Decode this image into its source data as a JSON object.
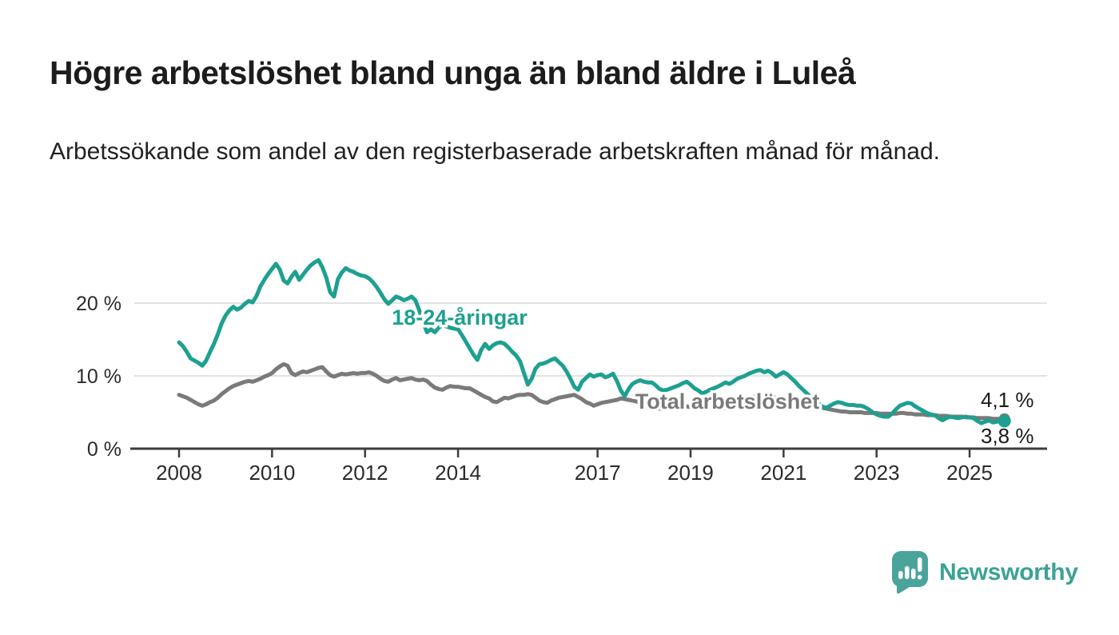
{
  "header": {
    "title": "Högre arbetslöshet bland unga än bland äldre i Luleå",
    "subtitle": "Arbetssökande som andel av den registerbaserade arbetskraften månad för månad."
  },
  "footer": {
    "brand": "Newsworthy",
    "logo_icon": "newsworthy-pin-barchart-icon"
  },
  "colors": {
    "young_line": "#1ea091",
    "total_line": "#7a7a7a",
    "grid": "#d8d8d8",
    "axis": "#3d3d3d",
    "tick_text": "#2b2b2b",
    "value_text": "#1a1a1a",
    "brand_teal": "#3ba296"
  },
  "chart_data": {
    "type": "line",
    "title": "Högre arbetslöshet bland unga än bland äldre i Luleå",
    "subtitle": "Arbetssökande som andel av den registerbaserade arbetskraften månad för månad.",
    "xlabel": "",
    "ylabel": "",
    "unit": "%",
    "frequency": "monthly",
    "xlim": [
      2007.0,
      2026.7
    ],
    "ylim": [
      0,
      27
    ],
    "grid": "horizontal",
    "yticks": [
      {
        "value": 0,
        "label": "0 %"
      },
      {
        "value": 10,
        "label": "10 %"
      },
      {
        "value": 20,
        "label": "20 %"
      }
    ],
    "xticks": [
      {
        "value": 2008,
        "label": "2008"
      },
      {
        "value": 2010,
        "label": "2010"
      },
      {
        "value": 2012,
        "label": "2012"
      },
      {
        "value": 2014,
        "label": "2014"
      },
      {
        "value": 2017,
        "label": "2017"
      },
      {
        "value": 2019,
        "label": "2019"
      },
      {
        "value": 2021,
        "label": "2021"
      },
      {
        "value": 2023,
        "label": "2023"
      },
      {
        "value": 2025,
        "label": "2025"
      }
    ],
    "series": [
      {
        "name": "Total arbetslöshet",
        "color": "#7a7a7a",
        "start_year": 2008,
        "interval": "monthly",
        "end_label": "4,1 %",
        "last_value": 4.1,
        "values": [
          7.4,
          7.2,
          7.0,
          6.7,
          6.4,
          6.1,
          5.9,
          6.1,
          6.4,
          6.6,
          7.0,
          7.5,
          7.9,
          8.3,
          8.6,
          8.8,
          9.0,
          9.2,
          9.3,
          9.2,
          9.4,
          9.6,
          9.9,
          10.1,
          10.4,
          10.9,
          11.3,
          11.6,
          11.4,
          10.4,
          10.1,
          10.4,
          10.6,
          10.5,
          10.7,
          10.9,
          11.1,
          11.2,
          10.6,
          10.1,
          9.9,
          10.1,
          10.3,
          10.2,
          10.3,
          10.4,
          10.3,
          10.4,
          10.4,
          10.5,
          10.3,
          10.0,
          9.6,
          9.3,
          9.2,
          9.5,
          9.7,
          9.4,
          9.5,
          9.6,
          9.7,
          9.5,
          9.4,
          9.5,
          9.3,
          8.8,
          8.4,
          8.2,
          8.1,
          8.4,
          8.6,
          8.5,
          8.5,
          8.4,
          8.3,
          8.3,
          8.0,
          7.7,
          7.4,
          7.1,
          6.9,
          6.5,
          6.4,
          6.7,
          7.0,
          6.9,
          7.1,
          7.3,
          7.4,
          7.4,
          7.5,
          7.4,
          7.0,
          6.6,
          6.4,
          6.3,
          6.6,
          6.8,
          7.0,
          7.1,
          7.2,
          7.3,
          7.4,
          7.1,
          6.8,
          6.4,
          6.2,
          5.9,
          6.1,
          6.3,
          6.4,
          6.5,
          6.6,
          6.7,
          6.9,
          6.8,
          6.7,
          6.6,
          6.5,
          6.3,
          6.1,
          5.9,
          5.7,
          5.6,
          5.5,
          5.5,
          5.5,
          5.6,
          5.6,
          5.7,
          5.7,
          5.8,
          5.7,
          5.6,
          5.5,
          5.5,
          5.4,
          5.4,
          5.5,
          5.5,
          5.6,
          5.6,
          5.7,
          5.8,
          5.9,
          6.1,
          6.5,
          6.9,
          7.1,
          7.2,
          7.3,
          7.2,
          7.2,
          7.1,
          7.0,
          6.9,
          6.8,
          6.7,
          6.6,
          6.5,
          6.4,
          6.2,
          6.1,
          6.0,
          5.9,
          5.8,
          5.6,
          5.5,
          5.4,
          5.3,
          5.2,
          5.1,
          5.1,
          5.0,
          5.0,
          5.0,
          5.0,
          4.9,
          4.9,
          4.9,
          4.9,
          4.8,
          4.8,
          4.8,
          4.8,
          4.8,
          4.9,
          4.9,
          4.8,
          4.8,
          4.7,
          4.7,
          4.7,
          4.6,
          4.6,
          4.6,
          4.5,
          4.5,
          4.5,
          4.4,
          4.4,
          4.4,
          4.4,
          4.3,
          4.3,
          4.3,
          4.2,
          4.2,
          4.2,
          4.2,
          4.1,
          4.1,
          4.1,
          4.1
        ]
      },
      {
        "name": "18-24-åringar",
        "color": "#1ea091",
        "start_year": 2008,
        "interval": "monthly",
        "end_label": "3,8 %",
        "last_value": 3.8,
        "values": [
          14.6,
          14.1,
          13.3,
          12.4,
          12.1,
          11.8,
          11.4,
          12.1,
          13.3,
          14.4,
          15.7,
          17.2,
          18.3,
          19.0,
          19.5,
          19.1,
          19.4,
          19.9,
          20.3,
          20.1,
          21.0,
          22.3,
          23.2,
          24.0,
          24.7,
          25.4,
          24.6,
          23.1,
          22.7,
          23.6,
          24.3,
          23.2,
          23.9,
          24.6,
          25.2,
          25.6,
          25.9,
          24.9,
          23.5,
          21.5,
          20.9,
          23.3,
          24.2,
          24.8,
          24.5,
          24.3,
          24.0,
          23.8,
          23.7,
          23.4,
          22.9,
          22.2,
          21.4,
          20.5,
          19.9,
          20.4,
          20.9,
          20.7,
          20.4,
          20.6,
          20.9,
          20.4,
          19.0,
          17.3,
          16.0,
          16.4,
          16.0,
          16.6,
          17.0,
          16.8,
          16.6,
          16.5,
          16.4,
          15.6,
          14.7,
          13.8,
          12.9,
          12.2,
          13.6,
          14.4,
          13.7,
          14.2,
          14.5,
          14.6,
          14.4,
          13.9,
          13.3,
          12.8,
          12.0,
          10.4,
          8.8,
          9.6,
          11.0,
          11.6,
          11.7,
          11.9,
          12.2,
          12.4,
          11.9,
          11.4,
          10.6,
          9.6,
          8.5,
          8.1,
          9.2,
          9.7,
          10.2,
          9.9,
          10.1,
          10.2,
          9.8,
          10.0,
          10.3,
          9.3,
          8.0,
          7.2,
          8.2,
          8.9,
          9.2,
          9.4,
          9.2,
          9.1,
          9.1,
          8.7,
          8.2,
          8.0,
          8.1,
          8.3,
          8.5,
          8.7,
          9.0,
          9.2,
          8.8,
          8.3,
          8.0,
          7.6,
          7.8,
          8.1,
          8.3,
          8.5,
          8.8,
          9.1,
          8.9,
          9.2,
          9.6,
          9.8,
          10.0,
          10.3,
          10.5,
          10.7,
          10.8,
          10.5,
          10.7,
          10.4,
          9.9,
          10.2,
          10.5,
          10.2,
          9.7,
          9.2,
          8.6,
          8.1,
          7.6,
          7.1,
          6.7,
          6.2,
          5.8,
          5.6,
          5.9,
          6.2,
          6.4,
          6.3,
          6.1,
          6.0,
          6.0,
          5.9,
          5.9,
          5.7,
          5.4,
          5.0,
          4.7,
          4.5,
          4.4,
          4.4,
          4.8,
          5.4,
          5.9,
          6.1,
          6.3,
          6.2,
          5.8,
          5.5,
          5.2,
          4.9,
          4.7,
          4.6,
          4.2,
          3.9,
          4.2,
          4.4,
          4.3,
          4.2,
          4.3,
          4.4,
          4.3,
          4.2,
          3.8,
          3.5,
          3.7,
          3.9,
          3.6,
          3.7,
          3.8,
          3.8
        ]
      }
    ],
    "series_labels": [
      {
        "text": "18-24-åringar",
        "color": "#1ea091"
      },
      {
        "text": "Total arbetslöshet",
        "color": "#7a7a7a"
      }
    ],
    "end_value_labels": [
      "4,1 %",
      "3,8 %"
    ],
    "legend_position": "inline-labels"
  }
}
